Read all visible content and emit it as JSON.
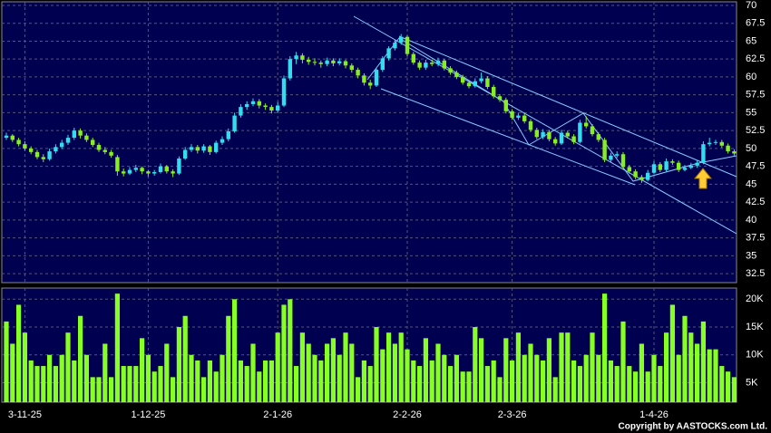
{
  "chart_data": {
    "type": "candlestick",
    "categories": [
      null,
      null,
      null,
      "3-11-25",
      null,
      null,
      null,
      null,
      null,
      null,
      null,
      null,
      null,
      null,
      null,
      null,
      null,
      null,
      null,
      null,
      null,
      null,
      null,
      "1-12-25",
      null,
      null,
      null,
      null,
      null,
      null,
      null,
      null,
      null,
      null,
      null,
      null,
      null,
      null,
      null,
      null,
      null,
      null,
      null,
      null,
      "2-1-26",
      null,
      null,
      null,
      null,
      null,
      null,
      null,
      null,
      null,
      null,
      null,
      null,
      null,
      null,
      null,
      null,
      null,
      null,
      null,
      null,
      "2-2-26",
      null,
      null,
      null,
      null,
      null,
      null,
      null,
      null,
      null,
      null,
      null,
      null,
      null,
      null,
      null,
      null,
      "2-3-26",
      null,
      null,
      null,
      null,
      null,
      null,
      null,
      null,
      null,
      null,
      null,
      null,
      null,
      null,
      null,
      null,
      null,
      null,
      null,
      null,
      null,
      null,
      "1-4-26",
      null,
      null,
      null,
      null,
      null,
      null,
      null,
      null,
      null,
      null,
      null,
      null,
      null
    ],
    "open": [
      51.5,
      51.8,
      51.2,
      50.6,
      50.0,
      49.5,
      48.8,
      48.5,
      49.6,
      50.2,
      50.8,
      51.5,
      52.5,
      51.8,
      51.2,
      50.5,
      49.8,
      49.5,
      48.8,
      46.8,
      46.5,
      47.0,
      47.3,
      46.8,
      46.5,
      46.7,
      47.5,
      46.8,
      46.5,
      48.6,
      49.8,
      50.2,
      49.7,
      50.3,
      49.5,
      50.8,
      51.3,
      52.4,
      54.6,
      55.8,
      56.2,
      56.6,
      56.0,
      55.8,
      55.3,
      56.0,
      59.8,
      62.5,
      63.0,
      62.4,
      62.1,
      62.0,
      61.8,
      62.3,
      61.9,
      62.2,
      61.6,
      61.0,
      60.2,
      59.2,
      58.8,
      61.0,
      62.6,
      64.0,
      64.8,
      65.6,
      63.2,
      62.0,
      61.3,
      62.0,
      61.8,
      62.3,
      61.2,
      60.6,
      60.0,
      59.2,
      58.7,
      59.4,
      59.8,
      58.6,
      57.3,
      56.8,
      55.2,
      54.3,
      54.6,
      53.8,
      52.6,
      51.6,
      52.3,
      51.3,
      50.7,
      52.2,
      51.7,
      50.9,
      53.6,
      53.1,
      52.0,
      51.2,
      48.4,
      49.0,
      49.2,
      47.4,
      46.8,
      46.0,
      45.6,
      46.6,
      47.8,
      47.0,
      48.2,
      48.0,
      47.0,
      47.3,
      47.6,
      48.0,
      50.6,
      50.8,
      50.9,
      50.4,
      49.6
    ],
    "high": [
      52.2,
      52.0,
      51.5,
      51.0,
      50.3,
      49.8,
      49.2,
      50.0,
      50.6,
      51.2,
      51.9,
      52.9,
      52.8,
      52.1,
      51.5,
      50.8,
      50.2,
      49.8,
      49.1,
      47.2,
      47.4,
      47.7,
      47.5,
      47.0,
      47.0,
      47.9,
      47.7,
      47.1,
      48.9,
      50.2,
      50.6,
      50.5,
      50.6,
      50.5,
      51.1,
      51.7,
      52.8,
      55.0,
      56.2,
      56.6,
      57.0,
      56.9,
      56.3,
      56.1,
      56.5,
      60.2,
      62.9,
      63.5,
      63.3,
      62.8,
      62.6,
      62.3,
      62.7,
      62.6,
      62.6,
      62.4,
      61.9,
      61.3,
      60.5,
      59.6,
      61.3,
      62.9,
      64.3,
      65.2,
      66.0,
      65.8,
      63.5,
      62.3,
      62.4,
      62.4,
      62.7,
      62.5,
      61.5,
      60.9,
      60.3,
      59.5,
      59.8,
      60.6,
      60.1,
      58.9,
      57.6,
      57.1,
      55.5,
      55.0,
      54.9,
      54.1,
      52.9,
      52.7,
      52.6,
      51.6,
      52.6,
      52.5,
      52.0,
      54.0,
      54.5,
      53.4,
      52.3,
      51.5,
      49.4,
      49.6,
      49.5,
      47.7,
      47.1,
      46.3,
      47.0,
      48.2,
      48.1,
      48.6,
      48.5,
      48.3,
      47.7,
      48.0,
      48.4,
      51.0,
      51.5,
      51.2,
      51.2,
      50.7,
      49.9
    ],
    "low": [
      51.2,
      50.9,
      50.3,
      49.7,
      49.2,
      48.5,
      48.1,
      48.3,
      49.3,
      49.9,
      50.5,
      51.2,
      51.4,
      50.9,
      50.2,
      49.5,
      49.2,
      48.7,
      46.2,
      46.1,
      46.3,
      46.7,
      46.4,
      46.1,
      46.2,
      46.5,
      46.5,
      46.0,
      46.3,
      48.4,
      49.5,
      49.3,
      49.4,
      49.1,
      49.3,
      50.5,
      51.0,
      52.2,
      54.3,
      55.4,
      55.9,
      55.6,
      55.4,
      54.9,
      55.0,
      55.8,
      59.5,
      61.8,
      61.9,
      61.7,
      61.6,
      61.3,
      61.5,
      61.5,
      61.6,
      61.2,
      60.6,
      59.8,
      58.8,
      58.3,
      58.6,
      60.7,
      62.3,
      63.7,
      64.5,
      62.9,
      61.7,
      61.0,
      61.0,
      61.5,
      61.5,
      60.9,
      60.3,
      59.7,
      58.9,
      58.4,
      58.5,
      59.1,
      58.3,
      57.0,
      56.5,
      54.9,
      54.0,
      54.0,
      53.5,
      52.3,
      51.3,
      51.3,
      51.0,
      50.4,
      50.5,
      51.4,
      50.6,
      50.7,
      52.8,
      51.7,
      50.9,
      48.1,
      48.1,
      48.7,
      47.1,
      46.5,
      45.7,
      45.2,
      45.4,
      46.4,
      46.7,
      46.8,
      47.7,
      46.7,
      46.8,
      47.1,
      47.3,
      47.8,
      50.3,
      50.5,
      50.1,
      49.3,
      49.0
    ],
    "close": [
      51.8,
      51.2,
      50.6,
      50.0,
      49.5,
      48.8,
      48.5,
      49.6,
      50.2,
      50.8,
      51.5,
      52.5,
      51.8,
      51.2,
      50.5,
      49.8,
      49.5,
      49.0,
      46.8,
      46.5,
      47.0,
      47.3,
      46.8,
      46.5,
      46.7,
      47.5,
      46.8,
      46.5,
      48.6,
      49.8,
      50.2,
      49.7,
      50.3,
      49.5,
      50.8,
      51.3,
      52.4,
      54.6,
      55.8,
      56.2,
      56.6,
      56.0,
      55.8,
      55.3,
      56.0,
      59.8,
      62.5,
      63.0,
      62.4,
      62.1,
      62.0,
      61.8,
      62.3,
      61.9,
      62.2,
      61.6,
      61.0,
      60.2,
      59.2,
      58.8,
      61.0,
      62.6,
      64.0,
      64.8,
      65.6,
      63.2,
      62.0,
      61.3,
      62.0,
      61.8,
      62.3,
      61.2,
      60.6,
      60.0,
      59.2,
      58.7,
      59.4,
      59.8,
      58.6,
      57.3,
      56.8,
      55.2,
      54.3,
      54.6,
      53.8,
      52.6,
      51.6,
      52.3,
      51.3,
      50.7,
      52.2,
      51.7,
      50.9,
      53.6,
      53.1,
      52.0,
      51.2,
      48.4,
      49.0,
      49.2,
      47.4,
      46.8,
      46.0,
      45.6,
      46.6,
      47.8,
      47.0,
      48.2,
      48.0,
      47.0,
      47.3,
      47.6,
      48.0,
      50.6,
      50.8,
      50.9,
      50.4,
      49.6,
      49.3
    ],
    "volume": [
      16000,
      12000,
      19000,
      14000,
      9000,
      8000,
      8000,
      10000,
      8000,
      10000,
      14000,
      9000,
      17000,
      10000,
      6000,
      6000,
      12000,
      6000,
      21000,
      8000,
      8000,
      8000,
      13000,
      10000,
      7000,
      8000,
      12000,
      6000,
      15000,
      17000,
      10000,
      9000,
      6000,
      9000,
      7000,
      10000,
      17000,
      20000,
      9000,
      8000,
      12000,
      7000,
      9000,
      9000,
      14000,
      19000,
      20000,
      8000,
      14000,
      12000,
      10000,
      9000,
      12000,
      13000,
      10000,
      14000,
      12000,
      6000,
      9000,
      8000,
      15000,
      11000,
      14000,
      12000,
      14000,
      11000,
      9000,
      8000,
      13000,
      9000,
      12000,
      10000,
      8000,
      10000,
      7000,
      7000,
      15000,
      13000,
      8000,
      9000,
      6000,
      13000,
      9000,
      14000,
      10000,
      12000,
      10000,
      9000,
      13000,
      6000,
      14000,
      14000,
      9000,
      8000,
      10000,
      14000,
      10000,
      21000,
      9000,
      8000,
      16000,
      8000,
      7000,
      12000,
      7000,
      10000,
      8000,
      14000,
      19000,
      10000,
      17000,
      14000,
      12000,
      16000,
      11000,
      11000,
      8000,
      7000,
      6000
    ],
    "up_color": "#33ddee",
    "down_color": "#88ee22",
    "volume_color": "#88ff22",
    "ylim": [
      31.25,
      70.5
    ],
    "yticks": [
      70,
      67.5,
      65,
      62.5,
      60,
      57.5,
      55,
      52.5,
      50,
      47.5,
      45,
      42.5,
      40,
      37.5,
      35,
      32.5
    ],
    "volume_ylim": [
      1500,
      22000
    ],
    "volume_yticks": [
      {
        "value": 20000,
        "label": "20K"
      },
      {
        "value": 15000,
        "label": "15K"
      },
      {
        "value": 10000,
        "label": "10K"
      },
      {
        "value": 5000,
        "label": "5K"
      }
    ],
    "grid": true,
    "copyright": "Copyright by AASTOCKS.com Ltd."
  }
}
